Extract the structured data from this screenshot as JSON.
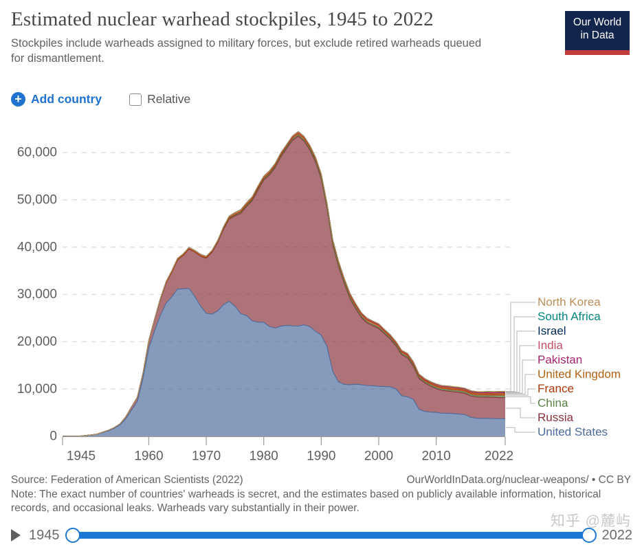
{
  "header": {
    "title": "Estimated nuclear warhead stockpiles, 1945 to 2022",
    "subtitle": "Stockpiles include warheads assigned to military forces, but exclude retired warheads queued for dismantlement.",
    "logo": {
      "line1": "Our World",
      "line2": "in Data"
    }
  },
  "controls": {
    "add_country_label": "Add country",
    "plus_icon": "+",
    "relative_label": "Relative",
    "relative_checked": false
  },
  "colors": {
    "accent_blue": "#1f72cf",
    "slider_blue": "#1d77d4",
    "brand_navy": "#12264d",
    "brand_red": "#c23b3b",
    "axis_text": "#5e5e5e",
    "gridline": "#dcdcdc",
    "connector": "#b4b4b4"
  },
  "chart_data": {
    "type": "area",
    "stacked": true,
    "title": "Estimated nuclear warhead stockpiles, 1945 to 2022",
    "xlabel": "",
    "ylabel": "",
    "ylim": [
      0,
      60000
    ],
    "grid": "horizontal-dashed",
    "legend_position": "right",
    "x": [
      1945,
      1946,
      1947,
      1948,
      1949,
      1950,
      1951,
      1952,
      1953,
      1954,
      1955,
      1956,
      1957,
      1958,
      1959,
      1960,
      1961,
      1962,
      1963,
      1964,
      1965,
      1966,
      1967,
      1968,
      1969,
      1970,
      1971,
      1972,
      1973,
      1974,
      1975,
      1976,
      1977,
      1978,
      1979,
      1980,
      1981,
      1982,
      1983,
      1984,
      1985,
      1986,
      1987,
      1988,
      1989,
      1990,
      1991,
      1992,
      1993,
      1994,
      1995,
      1996,
      1997,
      1998,
      1999,
      2000,
      2001,
      2002,
      2003,
      2004,
      2005,
      2006,
      2007,
      2008,
      2009,
      2010,
      2011,
      2012,
      2013,
      2014,
      2015,
      2016,
      2017,
      2018,
      2019,
      2020,
      2021,
      2022
    ],
    "y_ticks": [
      {
        "value": 0,
        "label": "0"
      },
      {
        "value": 10000,
        "label": "10,000"
      },
      {
        "value": 20000,
        "label": "20,000"
      },
      {
        "value": 30000,
        "label": "30,000"
      },
      {
        "value": 40000,
        "label": "40,000"
      },
      {
        "value": 50000,
        "label": "50,000"
      },
      {
        "value": 60000,
        "label": "60,000"
      }
    ],
    "x_ticks": [
      {
        "value": 1945,
        "label": "1945"
      },
      {
        "value": 1960,
        "label": "1960"
      },
      {
        "value": 1970,
        "label": "1970"
      },
      {
        "value": 1980,
        "label": "1980"
      },
      {
        "value": 1990,
        "label": "1990"
      },
      {
        "value": 2000,
        "label": "2000"
      },
      {
        "value": 2010,
        "label": "2010"
      },
      {
        "value": 2022,
        "label": "2022"
      }
    ],
    "series": [
      {
        "name": "United States",
        "color": "#4C6A9C",
        "values": [
          2,
          9,
          13,
          50,
          170,
          299,
          438,
          841,
          1169,
          1703,
          2422,
          3692,
          5543,
          7345,
          12298,
          18638,
          22229,
          25540,
          28133,
          29463,
          31139,
          31175,
          31255,
          29561,
          27552,
          26008,
          25830,
          26516,
          27835,
          28537,
          27519,
          25914,
          25542,
          24418,
          24138,
          24104,
          23208,
          22886,
          23305,
          23459,
          23368,
          23317,
          23575,
          23205,
          22217,
          21392,
          19008,
          13708,
          11511,
          10979,
          10904,
          11011,
          10903,
          10732,
          10685,
          10577,
          10526,
          10457,
          10027,
          8570,
          8360,
          7853,
          5709,
          5273,
          5113,
          5066,
          4897,
          4881,
          4804,
          4717,
          4571,
          4018,
          3822,
          3785,
          3805,
          3750,
          3708,
          3708
        ]
      },
      {
        "name": "Russia",
        "color": "#883039",
        "values": [
          0,
          0,
          0,
          0,
          1,
          5,
          25,
          50,
          120,
          150,
          200,
          426,
          660,
          869,
          1060,
          1605,
          2471,
          3322,
          4238,
          5221,
          6129,
          7089,
          8339,
          9399,
          10538,
          11643,
          13092,
          14478,
          15915,
          17385,
          19055,
          21205,
          23044,
          25393,
          27935,
          30062,
          32049,
          33952,
          35804,
          37431,
          39197,
          40159,
          38859,
          37333,
          35805,
          32980,
          29154,
          26734,
          24403,
          21339,
          18179,
          15942,
          14168,
          13188,
          12688,
          12188,
          11152,
          10114,
          9076,
          8653,
          8232,
          7000,
          6500,
          6000,
          5500,
          5000,
          4800,
          4700,
          4600,
          4550,
          4500,
          4500,
          4500,
          4480,
          4490,
          4480,
          4478,
          4477
        ]
      },
      {
        "name": "China",
        "color": "#578145",
        "values": [
          0,
          0,
          0,
          0,
          0,
          0,
          0,
          0,
          0,
          0,
          0,
          0,
          0,
          0,
          0,
          0,
          0,
          0,
          0,
          1,
          5,
          20,
          25,
          35,
          50,
          75,
          100,
          130,
          150,
          170,
          185,
          190,
          200,
          220,
          235,
          205,
          225,
          235,
          240,
          245,
          243,
          253,
          224,
          244,
          234,
          232,
          234,
          234,
          234,
          234,
          234,
          234,
          232,
          232,
          232,
          232,
          235,
          235,
          235,
          235,
          235,
          235,
          235,
          235,
          240,
          240,
          240,
          250,
          250,
          260,
          260,
          260,
          270,
          280,
          290,
          320,
          350,
          350
        ]
      },
      {
        "name": "France",
        "color": "#B13507",
        "values": [
          0,
          0,
          0,
          0,
          0,
          0,
          0,
          0,
          0,
          0,
          0,
          0,
          0,
          0,
          0,
          0,
          0,
          0,
          0,
          4,
          32,
          36,
          36,
          36,
          36,
          36,
          45,
          70,
          116,
          145,
          188,
          212,
          228,
          235,
          235,
          250,
          274,
          274,
          279,
          280,
          360,
          355,
          420,
          410,
          410,
          505,
          540,
          540,
          525,
          510,
          500,
          450,
          450,
          450,
          450,
          470,
          350,
          350,
          350,
          350,
          350,
          350,
          350,
          300,
          300,
          300,
          300,
          300,
          300,
          300,
          300,
          300,
          300,
          300,
          290,
          290,
          290,
          290
        ]
      },
      {
        "name": "United Kingdom",
        "color": "#B16214",
        "values": [
          0,
          0,
          0,
          0,
          0,
          0,
          0,
          0,
          1,
          5,
          10,
          15,
          20,
          22,
          25,
          30,
          50,
          205,
          280,
          310,
          310,
          270,
          270,
          280,
          308,
          280,
          220,
          220,
          275,
          325,
          350,
          350,
          350,
          350,
          350,
          350,
          350,
          335,
          320,
          270,
          300,
          300,
          300,
          300,
          300,
          300,
          300,
          300,
          300,
          250,
          300,
          300,
          260,
          260,
          185,
          185,
          200,
          200,
          200,
          200,
          200,
          195,
          195,
          185,
          185,
          225,
          225,
          225,
          225,
          225,
          215,
          215,
          215,
          200,
          200,
          195,
          225,
          225
        ]
      },
      {
        "name": "Pakistan",
        "color": "#A2246B",
        "values": [
          0,
          0,
          0,
          0,
          0,
          0,
          0,
          0,
          0,
          0,
          0,
          0,
          0,
          0,
          0,
          0,
          0,
          0,
          0,
          0,
          0,
          0,
          0,
          0,
          0,
          0,
          0,
          0,
          0,
          0,
          0,
          0,
          0,
          0,
          0,
          0,
          0,
          0,
          0,
          0,
          0,
          0,
          0,
          0,
          0,
          0,
          0,
          0,
          0,
          0,
          0,
          0,
          0,
          5,
          10,
          20,
          26,
          32,
          38,
          44,
          50,
          56,
          62,
          70,
          80,
          90,
          100,
          110,
          120,
          123,
          125,
          135,
          145,
          150,
          155,
          160,
          165,
          165
        ]
      },
      {
        "name": "India",
        "color": "#C15065",
        "values": [
          0,
          0,
          0,
          0,
          0,
          0,
          0,
          0,
          0,
          0,
          0,
          0,
          0,
          0,
          0,
          0,
          0,
          0,
          0,
          0,
          0,
          0,
          0,
          0,
          0,
          0,
          0,
          0,
          0,
          0,
          0,
          0,
          0,
          0,
          0,
          0,
          0,
          0,
          0,
          0,
          0,
          0,
          5,
          7,
          10,
          12,
          14,
          16,
          18,
          20,
          22,
          24,
          24,
          26,
          28,
          30,
          32,
          34,
          36,
          40,
          44,
          50,
          60,
          70,
          75,
          80,
          90,
          100,
          105,
          110,
          115,
          120,
          130,
          140,
          150,
          155,
          160,
          160
        ]
      },
      {
        "name": "Israel",
        "color": "#00295B",
        "values": [
          0,
          0,
          0,
          0,
          0,
          0,
          0,
          0,
          0,
          0,
          0,
          0,
          0,
          0,
          0,
          0,
          0,
          0,
          0,
          0,
          0,
          0,
          8,
          10,
          12,
          15,
          18,
          20,
          22,
          25,
          28,
          30,
          32,
          34,
          36,
          38,
          40,
          42,
          45,
          48,
          50,
          53,
          55,
          58,
          60,
          63,
          65,
          68,
          70,
          72,
          75,
          76,
          77,
          78,
          79,
          80,
          80,
          80,
          80,
          80,
          80,
          80,
          80,
          80,
          80,
          80,
          80,
          80,
          80,
          80,
          80,
          80,
          80,
          80,
          90,
          90,
          90,
          90
        ]
      },
      {
        "name": "South Africa",
        "color": "#00847E",
        "values": [
          0,
          0,
          0,
          0,
          0,
          0,
          0,
          0,
          0,
          0,
          0,
          0,
          0,
          0,
          0,
          0,
          0,
          0,
          0,
          0,
          0,
          0,
          0,
          0,
          0,
          0,
          0,
          0,
          0,
          0,
          0,
          0,
          0,
          0,
          1,
          1,
          1,
          2,
          3,
          4,
          5,
          5,
          6,
          6,
          6,
          3,
          1,
          0,
          0,
          0,
          0,
          0,
          0,
          0,
          0,
          0,
          0,
          0,
          0,
          0,
          0,
          0,
          0,
          0,
          0,
          0,
          0,
          0,
          0,
          0,
          0,
          0,
          0,
          0,
          0,
          0,
          0,
          0
        ]
      },
      {
        "name": "North Korea",
        "color": "#BC8E5A",
        "values": [
          0,
          0,
          0,
          0,
          0,
          0,
          0,
          0,
          0,
          0,
          0,
          0,
          0,
          0,
          0,
          0,
          0,
          0,
          0,
          0,
          0,
          0,
          0,
          0,
          0,
          0,
          0,
          0,
          0,
          0,
          0,
          0,
          0,
          0,
          0,
          0,
          0,
          0,
          0,
          0,
          0,
          0,
          0,
          0,
          0,
          0,
          0,
          0,
          0,
          0,
          0,
          0,
          0,
          0,
          0,
          0,
          0,
          0,
          0,
          0,
          0,
          1,
          2,
          2,
          3,
          4,
          5,
          6,
          7,
          8,
          10,
          12,
          15,
          15,
          18,
          19,
          20,
          20
        ]
      }
    ]
  },
  "footer": {
    "source": "Source: Federation of American Scientists (2022)",
    "attribution": "OurWorldInData.org/nuclear-weapons/ • CC BY",
    "note": "Note: The exact number of countries' warheads is secret, and the estimates based on publicly available information, historical records, and occasional leaks. Warheads vary substantially in their power."
  },
  "timeline": {
    "start_label": "1945",
    "end_label": "2022"
  },
  "watermark": "知乎 @麓屿"
}
